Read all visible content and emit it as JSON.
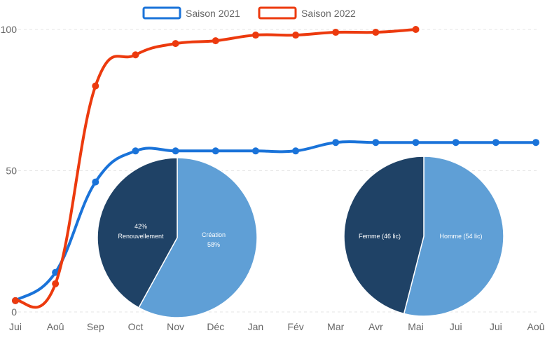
{
  "chart_data": [
    {
      "type": "line",
      "x": [
        "Jui",
        "Aoû",
        "Sep",
        "Oct",
        "Nov",
        "Déc",
        "Jan",
        "Fév",
        "Mar",
        "Avr",
        "Mai",
        "Jui",
        "Jui",
        "Aoû"
      ],
      "series": [
        {
          "name": "Saison 2021",
          "color": "#1a73d9",
          "values": [
            4,
            14,
            46,
            57,
            57,
            57,
            57,
            57,
            60,
            60,
            60,
            60,
            60,
            60
          ]
        },
        {
          "name": "Saison 2022",
          "color": "#ec3a0e",
          "values": [
            4,
            10,
            80,
            91,
            95,
            96,
            98,
            98,
            99,
            99,
            100,
            null,
            null,
            null
          ]
        }
      ],
      "yticks": [
        0,
        50,
        100
      ],
      "ylim": [
        0,
        100
      ],
      "grid": true,
      "legend": "top-center"
    },
    {
      "type": "pie",
      "slices": [
        {
          "label": "Création",
          "value": 58,
          "pct_text": "58%",
          "color": "#5f9fd6"
        },
        {
          "label": "Renouvellement",
          "value": 42,
          "pct_text": "42%",
          "color": "#1f4266"
        }
      ]
    },
    {
      "type": "pie",
      "slices": [
        {
          "label": "Homme (54 lic)",
          "value": 54,
          "color": "#5f9fd6"
        },
        {
          "label": "Femme (46 lic)",
          "value": 46,
          "color": "#1f4266"
        }
      ]
    }
  ]
}
